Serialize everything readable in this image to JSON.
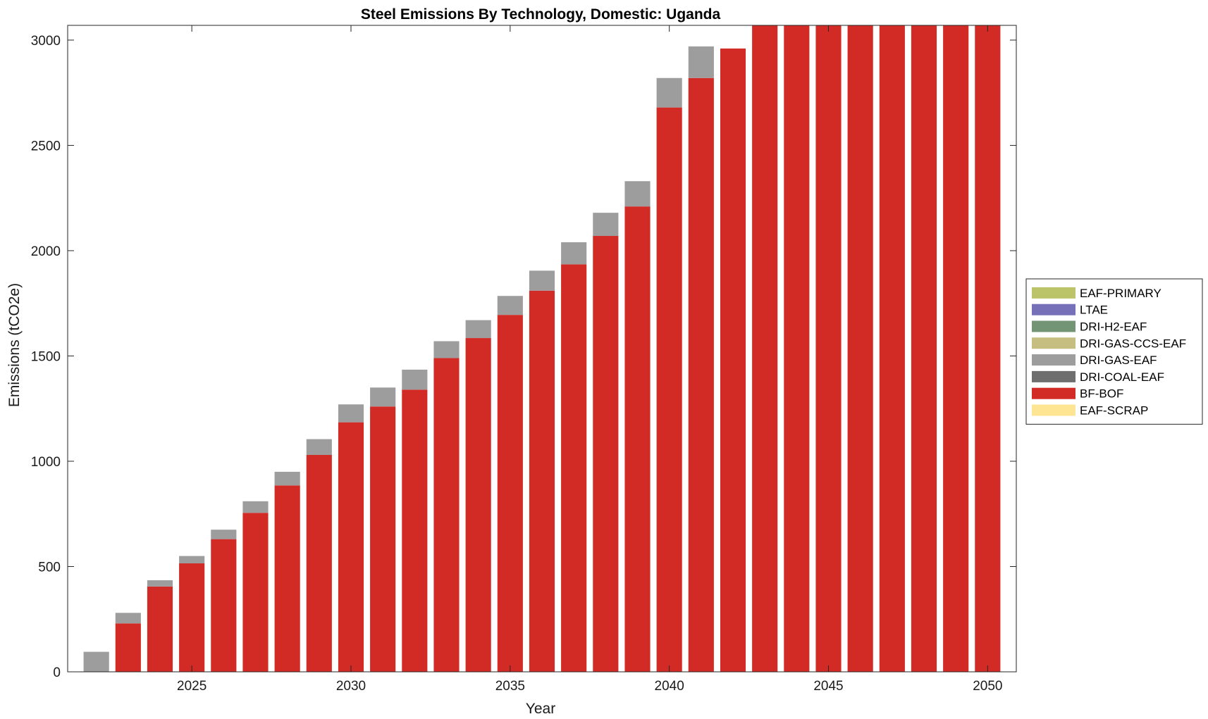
{
  "chart_data": {
    "type": "bar",
    "stacked": true,
    "title": "Steel Emissions By Technology, Domestic: Uganda",
    "xlabel": "Year",
    "ylabel": "Emissions (tCO2e)",
    "xlim": [
      2021.1,
      2050.9
    ],
    "ylim": [
      0,
      3070
    ],
    "xticks": [
      2025,
      2030,
      2035,
      2040,
      2045,
      2050
    ],
    "yticks": [
      0,
      500,
      1000,
      1500,
      2000,
      2500,
      3000
    ],
    "grid": false,
    "legend_position": "right",
    "x": [
      2022,
      2023,
      2024,
      2025,
      2026,
      2027,
      2028,
      2029,
      2030,
      2031,
      2032,
      2033,
      2034,
      2035,
      2036,
      2037,
      2038,
      2039,
      2040,
      2041,
      2042,
      2043,
      2044,
      2045,
      2046,
      2047,
      2048,
      2049,
      2050
    ],
    "series": [
      {
        "name": "EAF-PRIMARY",
        "color": "#bcc46a",
        "values": [
          0,
          0,
          0,
          0,
          0,
          0,
          0,
          0,
          0,
          0,
          0,
          0,
          0,
          0,
          0,
          0,
          0,
          0,
          0,
          0,
          0,
          0,
          0,
          0,
          0,
          0,
          0,
          0,
          0
        ]
      },
      {
        "name": "LTAE",
        "color": "#7670b8",
        "values": [
          0,
          0,
          0,
          0,
          0,
          0,
          0,
          0,
          0,
          0,
          0,
          0,
          0,
          0,
          0,
          0,
          0,
          0,
          0,
          0,
          0,
          0,
          0,
          0,
          0,
          0,
          0,
          0,
          0
        ]
      },
      {
        "name": "DRI-H2-EAF",
        "color": "#739475",
        "values": [
          0,
          0,
          0,
          0,
          0,
          0,
          0,
          0,
          0,
          0,
          0,
          0,
          0,
          0,
          0,
          0,
          0,
          0,
          0,
          0,
          0,
          0,
          0,
          0,
          0,
          0,
          0,
          0,
          0
        ]
      },
      {
        "name": "DRI-GAS-CCS-EAF",
        "color": "#c6bd80",
        "values": [
          0,
          0,
          0,
          0,
          0,
          0,
          0,
          0,
          0,
          0,
          0,
          0,
          0,
          0,
          0,
          0,
          0,
          0,
          0,
          0,
          0,
          0,
          0,
          0,
          0,
          0,
          0,
          0,
          0
        ]
      },
      {
        "name": "DRI-GAS-EAF",
        "color": "#9d9d9d",
        "values": [
          95,
          50,
          30,
          35,
          45,
          55,
          65,
          75,
          85,
          90,
          95,
          80,
          85,
          90,
          95,
          105,
          110,
          120,
          140,
          150,
          0,
          0,
          0,
          0,
          0,
          0,
          0,
          0,
          0
        ]
      },
      {
        "name": "DRI-COAL-EAF",
        "color": "#6e6e6e",
        "values": [
          0,
          0,
          0,
          0,
          0,
          0,
          0,
          0,
          0,
          0,
          0,
          0,
          0,
          0,
          0,
          0,
          0,
          0,
          0,
          0,
          0,
          0,
          0,
          0,
          0,
          0,
          0,
          0,
          0
        ]
      },
      {
        "name": "BF-BOF",
        "color": "#d22b26",
        "values": [
          0,
          230,
          405,
          515,
          630,
          755,
          885,
          1030,
          1185,
          1260,
          1340,
          1490,
          1585,
          1695,
          1810,
          1935,
          2070,
          2210,
          2680,
          2820,
          2960,
          3070,
          3070,
          3070,
          3070,
          3070,
          3070,
          3070,
          3070
        ]
      },
      {
        "name": "EAF-SCRAP",
        "color": "#fde594",
        "values": [
          0,
          0,
          0,
          0,
          0,
          0,
          0,
          0,
          0,
          0,
          0,
          0,
          0,
          0,
          0,
          0,
          0,
          0,
          0,
          0,
          0,
          0,
          0,
          0,
          0,
          0,
          0,
          0,
          0
        ]
      }
    ],
    "stack_order": [
      "BF-BOF",
      "DRI-GAS-EAF"
    ]
  }
}
